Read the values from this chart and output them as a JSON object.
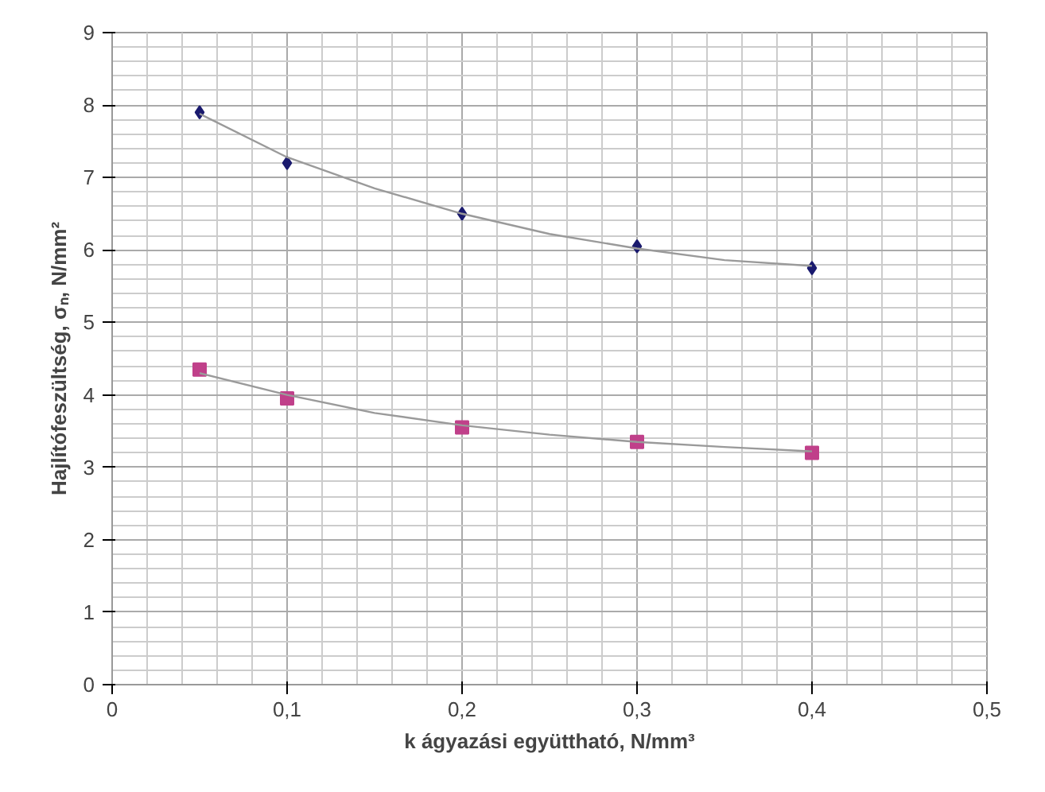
{
  "chart_data": {
    "type": "scatter",
    "xlabel": "k ágyazási együttható, N/mm³",
    "ylabel": "Hajlítófeszültség, σₙ, N/mm²",
    "x": [
      0.05,
      0.1,
      0.2,
      0.3,
      0.4
    ],
    "series": [
      {
        "color": "#1a1a6e",
        "marker": "diamond",
        "values": [
          7.9,
          7.2,
          6.5,
          6.05,
          5.75
        ]
      },
      {
        "color": "#c0408a",
        "marker": "square",
        "values": [
          4.35,
          3.95,
          3.55,
          3.35,
          3.2
        ]
      },
      {
        "type": "line",
        "color": "#9a9a9a",
        "x": [
          0.05,
          0.1,
          0.15,
          0.2,
          0.25,
          0.3,
          0.35,
          0.4
        ],
        "values": [
          7.88,
          7.28,
          6.85,
          6.5,
          6.22,
          6.02,
          5.86,
          5.78
        ]
      },
      {
        "type": "line",
        "color": "#9a9a9a",
        "x": [
          0.05,
          0.1,
          0.15,
          0.2,
          0.25,
          0.3,
          0.35,
          0.4
        ],
        "values": [
          4.3,
          4.0,
          3.75,
          3.58,
          3.45,
          3.35,
          3.28,
          3.22
        ]
      }
    ],
    "xlim": [
      0,
      0.5
    ],
    "ylim": [
      0,
      9
    ],
    "xticks": [
      {
        "value": 0,
        "label": "0"
      },
      {
        "value": 0.1,
        "label": "0,1"
      },
      {
        "value": 0.2,
        "label": "0,2"
      },
      {
        "value": 0.3,
        "label": "0,3"
      },
      {
        "value": 0.4,
        "label": "0,4"
      },
      {
        "value": 0.5,
        "label": "0,5"
      }
    ],
    "yticks": [
      0,
      1,
      2,
      3,
      4,
      5,
      6,
      7,
      8,
      9
    ],
    "grid": true
  }
}
